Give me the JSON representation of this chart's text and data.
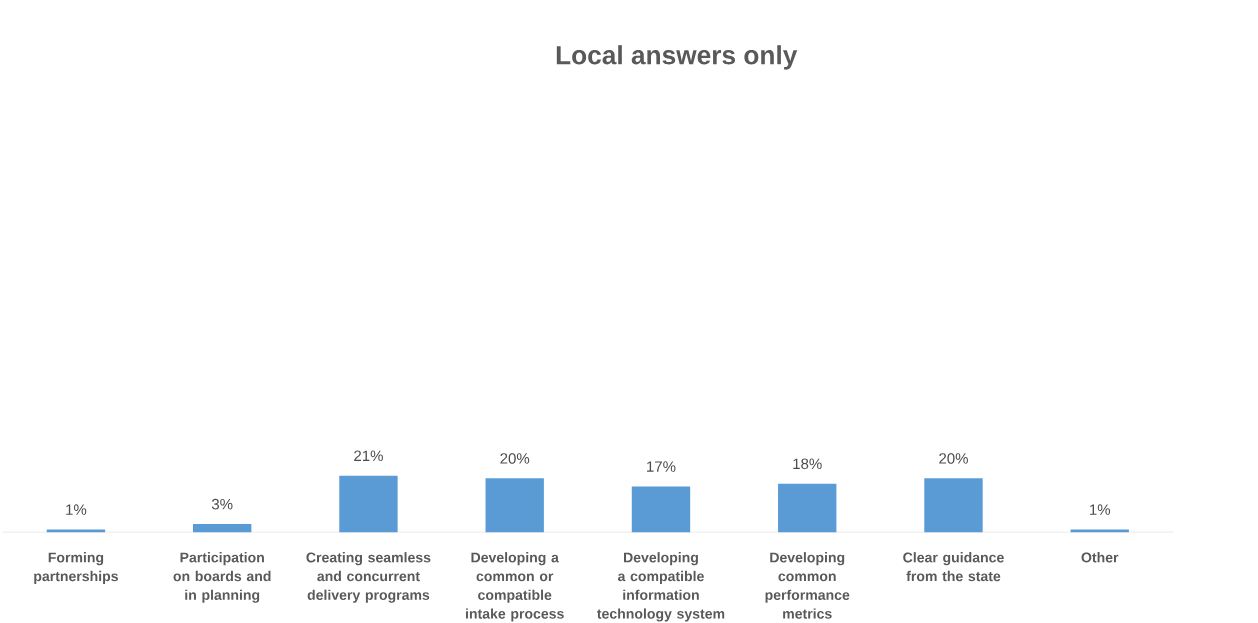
{
  "chart_data": {
    "type": "bar",
    "title": "Local answers only",
    "categories": [
      "Forming partnerships",
      "Participation on boards and in planning",
      "Creating seamless and concurrent delivery programs",
      "Developing a common or compatible intake process",
      "Developing a compatible information technology system",
      "Developing common performance metrics",
      "Clear guidance from the state",
      "Other"
    ],
    "values": [
      1,
      3,
      21,
      20,
      17,
      18,
      20,
      1
    ],
    "value_labels": [
      "1%",
      "3%",
      "21%",
      "20%",
      "17%",
      "18%",
      "20%",
      "1%"
    ],
    "color": "#5b9bd5"
  }
}
